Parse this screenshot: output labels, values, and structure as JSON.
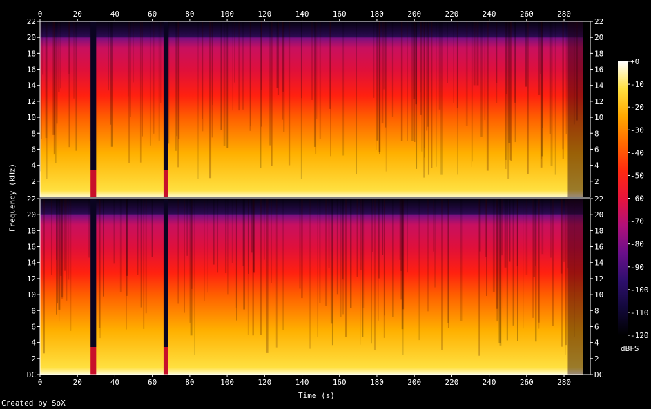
{
  "chart_data": {
    "type": "heatmap",
    "xlabel": "Time (s)",
    "ylabel": "Frequency (kHz)",
    "xlim": [
      0,
      294
    ],
    "ylim": [
      0,
      22
    ],
    "x_ticks": [
      0,
      20,
      40,
      60,
      80,
      100,
      120,
      140,
      160,
      180,
      200,
      220,
      240,
      260,
      280
    ],
    "y_ticks_top": [
      "22",
      "20",
      "18",
      "16",
      "14",
      "12",
      "10",
      "8",
      "6",
      "4",
      "2"
    ],
    "y_ticks_bottom": [
      "22",
      "20",
      "18",
      "16",
      "14",
      "12",
      "10",
      "8",
      "6",
      "4",
      "2",
      "DC"
    ],
    "channels": 2,
    "colorbar": {
      "label": "dBFS",
      "range": [
        -120,
        0
      ],
      "ticks": [
        "+0",
        "-10",
        "-20",
        "-30",
        "-40",
        "-50",
        "-60",
        "-70",
        "-80",
        "-90",
        "-100",
        "-110",
        "-120"
      ],
      "colors": [
        "#000000",
        "#1a0a5a",
        "#4a148c",
        "#8b0a8c",
        "#d01050",
        "#ff1a1a",
        "#ff5a00",
        "#ff9a00",
        "#ffd000",
        "#fff080",
        "#ffffff"
      ]
    },
    "silent_gaps_s": [
      [
        27,
        30
      ],
      [
        66,
        68.5
      ]
    ],
    "content_end_s": 290,
    "upper_cutoff_khz": 20
  },
  "footer": {
    "credit": "Created by SoX"
  }
}
